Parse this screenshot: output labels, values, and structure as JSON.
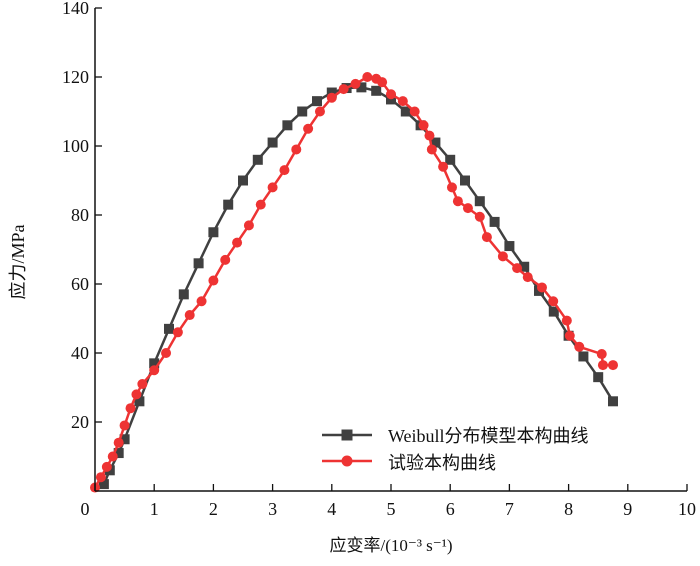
{
  "chart_data": {
    "type": "line",
    "title": "",
    "xlabel": "应变率/(10⁻³ s⁻¹)",
    "ylabel": "应力/MPa",
    "xlim": [
      0,
      10
    ],
    "ylim": [
      0,
      140
    ],
    "xticks": [
      "0",
      "1",
      "2",
      "3",
      "4",
      "5",
      "6",
      "7",
      "8",
      "9",
      "10"
    ],
    "yticks": [
      "20",
      "40",
      "60",
      "80",
      "100",
      "120",
      "140"
    ],
    "grid": false,
    "legend_position": "bottom-right",
    "series": [
      {
        "name": "Weibull分布模型本构曲线",
        "color": "#404040",
        "marker": "square",
        "x": [
          0.15,
          0.25,
          0.4,
          0.5,
          0.75,
          1.0,
          1.25,
          1.5,
          1.75,
          2.0,
          2.25,
          2.5,
          2.75,
          3.0,
          3.25,
          3.5,
          3.75,
          4.0,
          4.25,
          4.5,
          4.75,
          5.0,
          5.25,
          5.5,
          5.75,
          6.0,
          6.25,
          6.5,
          6.75,
          7.0,
          7.25,
          7.5,
          7.75,
          8.0,
          8.25,
          8.5,
          8.75
        ],
        "y": [
          2,
          6,
          11,
          15,
          26,
          37,
          47,
          57,
          66,
          75,
          83,
          90,
          96,
          101,
          106,
          110,
          113,
          115.5,
          116.8,
          117,
          116,
          113.5,
          110,
          106,
          101,
          96,
          90,
          84,
          78,
          71,
          65,
          58,
          52,
          45,
          39,
          33,
          26
        ]
      },
      {
        "name": "试验本构曲线",
        "color": "#ee3333",
        "marker": "circle",
        "x": [
          0.0,
          0.1,
          0.2,
          0.3,
          0.4,
          0.5,
          0.6,
          0.7,
          0.8,
          1.0,
          1.2,
          1.4,
          1.6,
          1.8,
          2.0,
          2.2,
          2.4,
          2.6,
          2.8,
          3.0,
          3.2,
          3.4,
          3.6,
          3.8,
          4.0,
          4.2,
          4.4,
          4.6,
          4.75,
          4.85,
          5.0,
          5.2,
          5.4,
          5.55,
          5.65,
          5.69,
          5.88,
          6.03,
          6.13,
          6.3,
          6.5,
          6.62,
          6.89,
          7.13,
          7.31,
          7.55,
          7.74,
          7.97,
          8.02,
          8.18,
          8.56,
          8.58,
          8.75
        ],
        "y": [
          1,
          4,
          7,
          10,
          14,
          19,
          24,
          28,
          31,
          35,
          40,
          46,
          51,
          55,
          61,
          67,
          72,
          77,
          83,
          88,
          93,
          99,
          105,
          110,
          114,
          116.5,
          118,
          120,
          119.5,
          118.5,
          115,
          113,
          110,
          106,
          103,
          99,
          94,
          88,
          84,
          82,
          79.5,
          73.6,
          68,
          64.6,
          62,
          59,
          55,
          49.4,
          45,
          41.8,
          39.7,
          36.5,
          36.5
        ]
      }
    ]
  }
}
